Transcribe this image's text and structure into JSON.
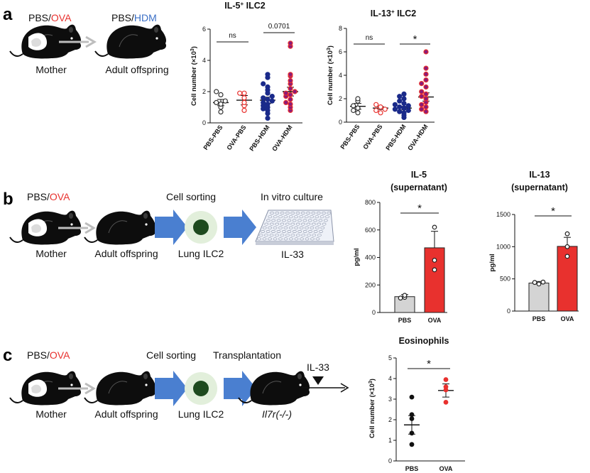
{
  "panels": [
    "a",
    "b",
    "c"
  ],
  "schemes": {
    "a": {
      "mother_pre": "PBS/",
      "mother_hl": "OVA",
      "offspring_pre": "PBS/",
      "offspring_hl": "HDM",
      "mother_label": "Mother",
      "offspring_label": "Adult offspring"
    },
    "b": {
      "mother_pre": "PBS/",
      "mother_hl": "OVA",
      "mother_label": "Mother",
      "offspring_label": "Adult offspring",
      "step1": "Cell sorting",
      "cell_label": "Lung ILC2",
      "step2": "In vitro culture",
      "plate_label": "IL-33"
    },
    "c": {
      "mother_pre": "PBS/",
      "mother_hl": "OVA",
      "mother_label": "Mother",
      "offspring_label": "Adult offspring",
      "step1": "Cell sorting",
      "cell_label": "Lung ILC2",
      "step2": "Transplantation",
      "recipient_label": "Il7r(-/-)",
      "stimulus": "IL-33"
    }
  },
  "colors": {
    "ova_red": "#e8312e",
    "hdm_blue": "#3b6fc6",
    "navy": "#1a2a8a",
    "purple": "#8a1a7a",
    "arrow_blue": "#4a7fd0",
    "grey_bar": "#d4d4d4"
  },
  "chart_data": [
    {
      "id": "a1",
      "type": "scatter",
      "title_pre": "IL-5",
      "title_sup": "+",
      "title_post": " ILC2",
      "ylabel_pre": "Cell number (×10",
      "ylabel_sup": "3",
      "ylabel_post": ")",
      "ylim": [
        0,
        6
      ],
      "yticks": [
        "0",
        "2",
        "4",
        "6"
      ],
      "categories": [
        "PBS-PBS",
        "OVA-PBS",
        "PBS-HDM",
        "OVA-HDM"
      ],
      "means": [
        1.3,
        1.45,
        1.45,
        2.0
      ],
      "sem": [
        0.2,
        0.3,
        0.2,
        0.28
      ],
      "points": [
        [
          0.7,
          1.0,
          1.2,
          1.3,
          1.4,
          1.8,
          2.0
        ],
        [
          0.8,
          1.1,
          1.3,
          1.6,
          1.9,
          1.9
        ],
        [
          0.3,
          0.6,
          0.8,
          0.9,
          1.0,
          1.1,
          1.2,
          1.3,
          1.4,
          1.5,
          1.6,
          1.7,
          1.9,
          2.1,
          2.3,
          2.5,
          2.9,
          3.1
        ],
        [
          0.8,
          1.0,
          1.2,
          1.3,
          1.5,
          1.7,
          1.8,
          1.9,
          2.0,
          2.2,
          2.5,
          2.7,
          3.0,
          3.1,
          4.9,
          5.1
        ]
      ],
      "comparisons": [
        {
          "groups": [
            0,
            1
          ],
          "label": "ns"
        },
        {
          "groups": [
            2,
            3
          ],
          "label": "0.0701"
        }
      ]
    },
    {
      "id": "a2",
      "type": "scatter",
      "title_pre": "IL-13",
      "title_sup": "+",
      "title_post": " ILC2",
      "ylabel_pre": "Cell number (×10",
      "ylabel_sup": "3",
      "ylabel_post": ")",
      "ylim": [
        0,
        8
      ],
      "yticks": [
        "0",
        "2",
        "4",
        "6",
        "8"
      ],
      "categories": [
        "PBS-PBS",
        "OVA-PBS",
        "PBS-HDM",
        "OVA-HDM"
      ],
      "means": [
        1.35,
        1.2,
        1.2,
        2.15
      ],
      "sem": [
        0.25,
        0.12,
        0.15,
        0.35
      ],
      "points": [
        [
          0.8,
          1.0,
          1.2,
          1.4,
          1.8,
          2.0
        ],
        [
          0.8,
          1.0,
          1.1,
          1.3,
          1.5
        ],
        [
          0.4,
          0.6,
          0.8,
          0.9,
          1.0,
          1.1,
          1.2,
          1.3,
          1.4,
          1.5,
          1.6,
          1.8,
          2.0,
          2.2,
          2.4
        ],
        [
          0.9,
          1.1,
          1.3,
          1.5,
          1.7,
          2.0,
          2.2,
          2.4,
          2.6,
          3.0,
          3.3,
          3.6,
          4.1,
          4.6,
          6.0
        ]
      ],
      "comparisons": [
        {
          "groups": [
            0,
            1
          ],
          "label": "ns"
        },
        {
          "groups": [
            2,
            3
          ],
          "label": "*"
        }
      ]
    },
    {
      "id": "b1",
      "type": "bar",
      "title": "IL-5",
      "subtitle": "(supernatant)",
      "ylabel": "pg/ml",
      "ylim": [
        0,
        800
      ],
      "yticks": [
        "0",
        "200",
        "400",
        "600",
        "800"
      ],
      "categories": [
        "PBS",
        "OVA"
      ],
      "values": [
        115,
        470
      ],
      "sem": [
        15,
        120
      ],
      "points": [
        [
          110,
          125,
          105
        ],
        [
          310,
          380,
          620
        ]
      ],
      "comparisons": [
        {
          "groups": [
            0,
            1
          ],
          "label": "*"
        }
      ]
    },
    {
      "id": "b2",
      "type": "bar",
      "title": "IL-13",
      "subtitle": "(supernatant)",
      "ylabel": "pg/ml",
      "ylim": [
        0,
        1500
      ],
      "yticks": [
        "0",
        "500",
        "1000",
        "1500"
      ],
      "categories": [
        "PBS",
        "OVA"
      ],
      "values": [
        435,
        1005
      ],
      "sem": [
        25,
        140
      ],
      "points": [
        [
          420,
          445,
          450
        ],
        [
          850,
          1000,
          1200
        ]
      ],
      "comparisons": [
        {
          "groups": [
            0,
            1
          ],
          "label": "*"
        }
      ]
    },
    {
      "id": "c1",
      "type": "scatter",
      "title": "Eosinophils",
      "ylabel_pre": "Cell number (×10",
      "ylabel_sup": "3",
      "ylabel_post": ")",
      "ylim": [
        0,
        5
      ],
      "yticks": [
        "0",
        "1",
        "2",
        "3",
        "4",
        "5"
      ],
      "categories": [
        "PBS",
        "OVA"
      ],
      "means": [
        1.75,
        3.42
      ],
      "sem": [
        0.45,
        0.32
      ],
      "points": [
        [
          0.8,
          1.35,
          2.05,
          2.25,
          3.1
        ],
        [
          2.85,
          3.45,
          3.6,
          3.95
        ]
      ],
      "comparisons": [
        {
          "groups": [
            0,
            1
          ],
          "label": "*"
        }
      ]
    }
  ]
}
